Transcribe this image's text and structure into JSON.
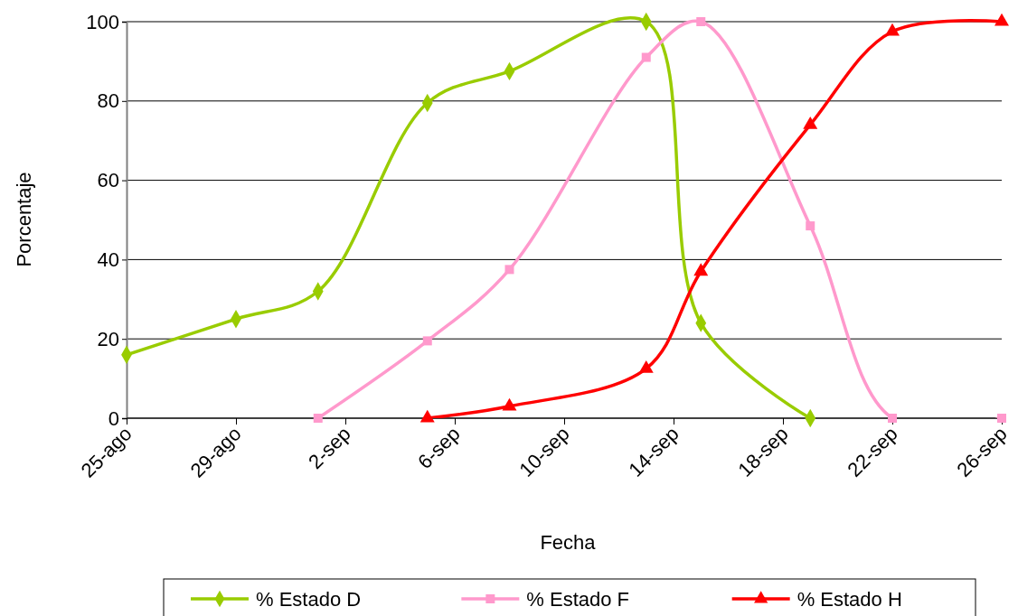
{
  "chart_data": {
    "type": "line",
    "xlabel": "Fecha",
    "ylabel": "Porcentaje",
    "xlim": [
      "--08-25",
      "--09-26"
    ],
    "xticks": [
      {
        "value": "--08-25",
        "label": "25-ago"
      },
      {
        "value": "--08-29",
        "label": "29-ago"
      },
      {
        "value": "--09-02",
        "label": "2-sep"
      },
      {
        "value": "--09-06",
        "label": "6-sep"
      },
      {
        "value": "--09-10",
        "label": "10-sep"
      },
      {
        "value": "--09-14",
        "label": "14-sep"
      },
      {
        "value": "--09-18",
        "label": "18-sep"
      },
      {
        "value": "--09-22",
        "label": "22-sep"
      },
      {
        "value": "--09-26",
        "label": "26-sep"
      }
    ],
    "ylim": [
      0,
      100
    ],
    "yticks": [
      0,
      20,
      40,
      60,
      80,
      100
    ],
    "grid": "y",
    "legend": "bottom",
    "line_style": "solid",
    "series": [
      {
        "name": "% Estado D",
        "color": "#99cc00",
        "marker": "diamond",
        "x": [
          "--08-25",
          "--08-29",
          "--09-01",
          "--09-05",
          "--09-08",
          "--09-13",
          "--09-15",
          "--09-19"
        ],
        "values": [
          16,
          25,
          32,
          79.5,
          87.5,
          100,
          24,
          0
        ]
      },
      {
        "name": "% Estado F",
        "color": "#ff99cc",
        "marker": "square",
        "x": [
          "--09-01",
          "--09-05",
          "--09-08",
          "--09-13",
          "--09-15",
          "--09-19",
          "--09-22",
          "--09-26"
        ],
        "values": [
          0,
          19.5,
          37.5,
          91,
          100,
          48.5,
          0,
          0
        ]
      },
      {
        "name": "% Estado H",
        "color": "#ff0000",
        "marker": "triangle",
        "x": [
          "--09-05",
          "--09-08",
          "--09-13",
          "--09-15",
          "--09-19",
          "--09-22",
          "--09-26"
        ],
        "values": [
          0,
          3,
          12.5,
          37,
          74,
          97.5,
          100
        ]
      }
    ]
  }
}
